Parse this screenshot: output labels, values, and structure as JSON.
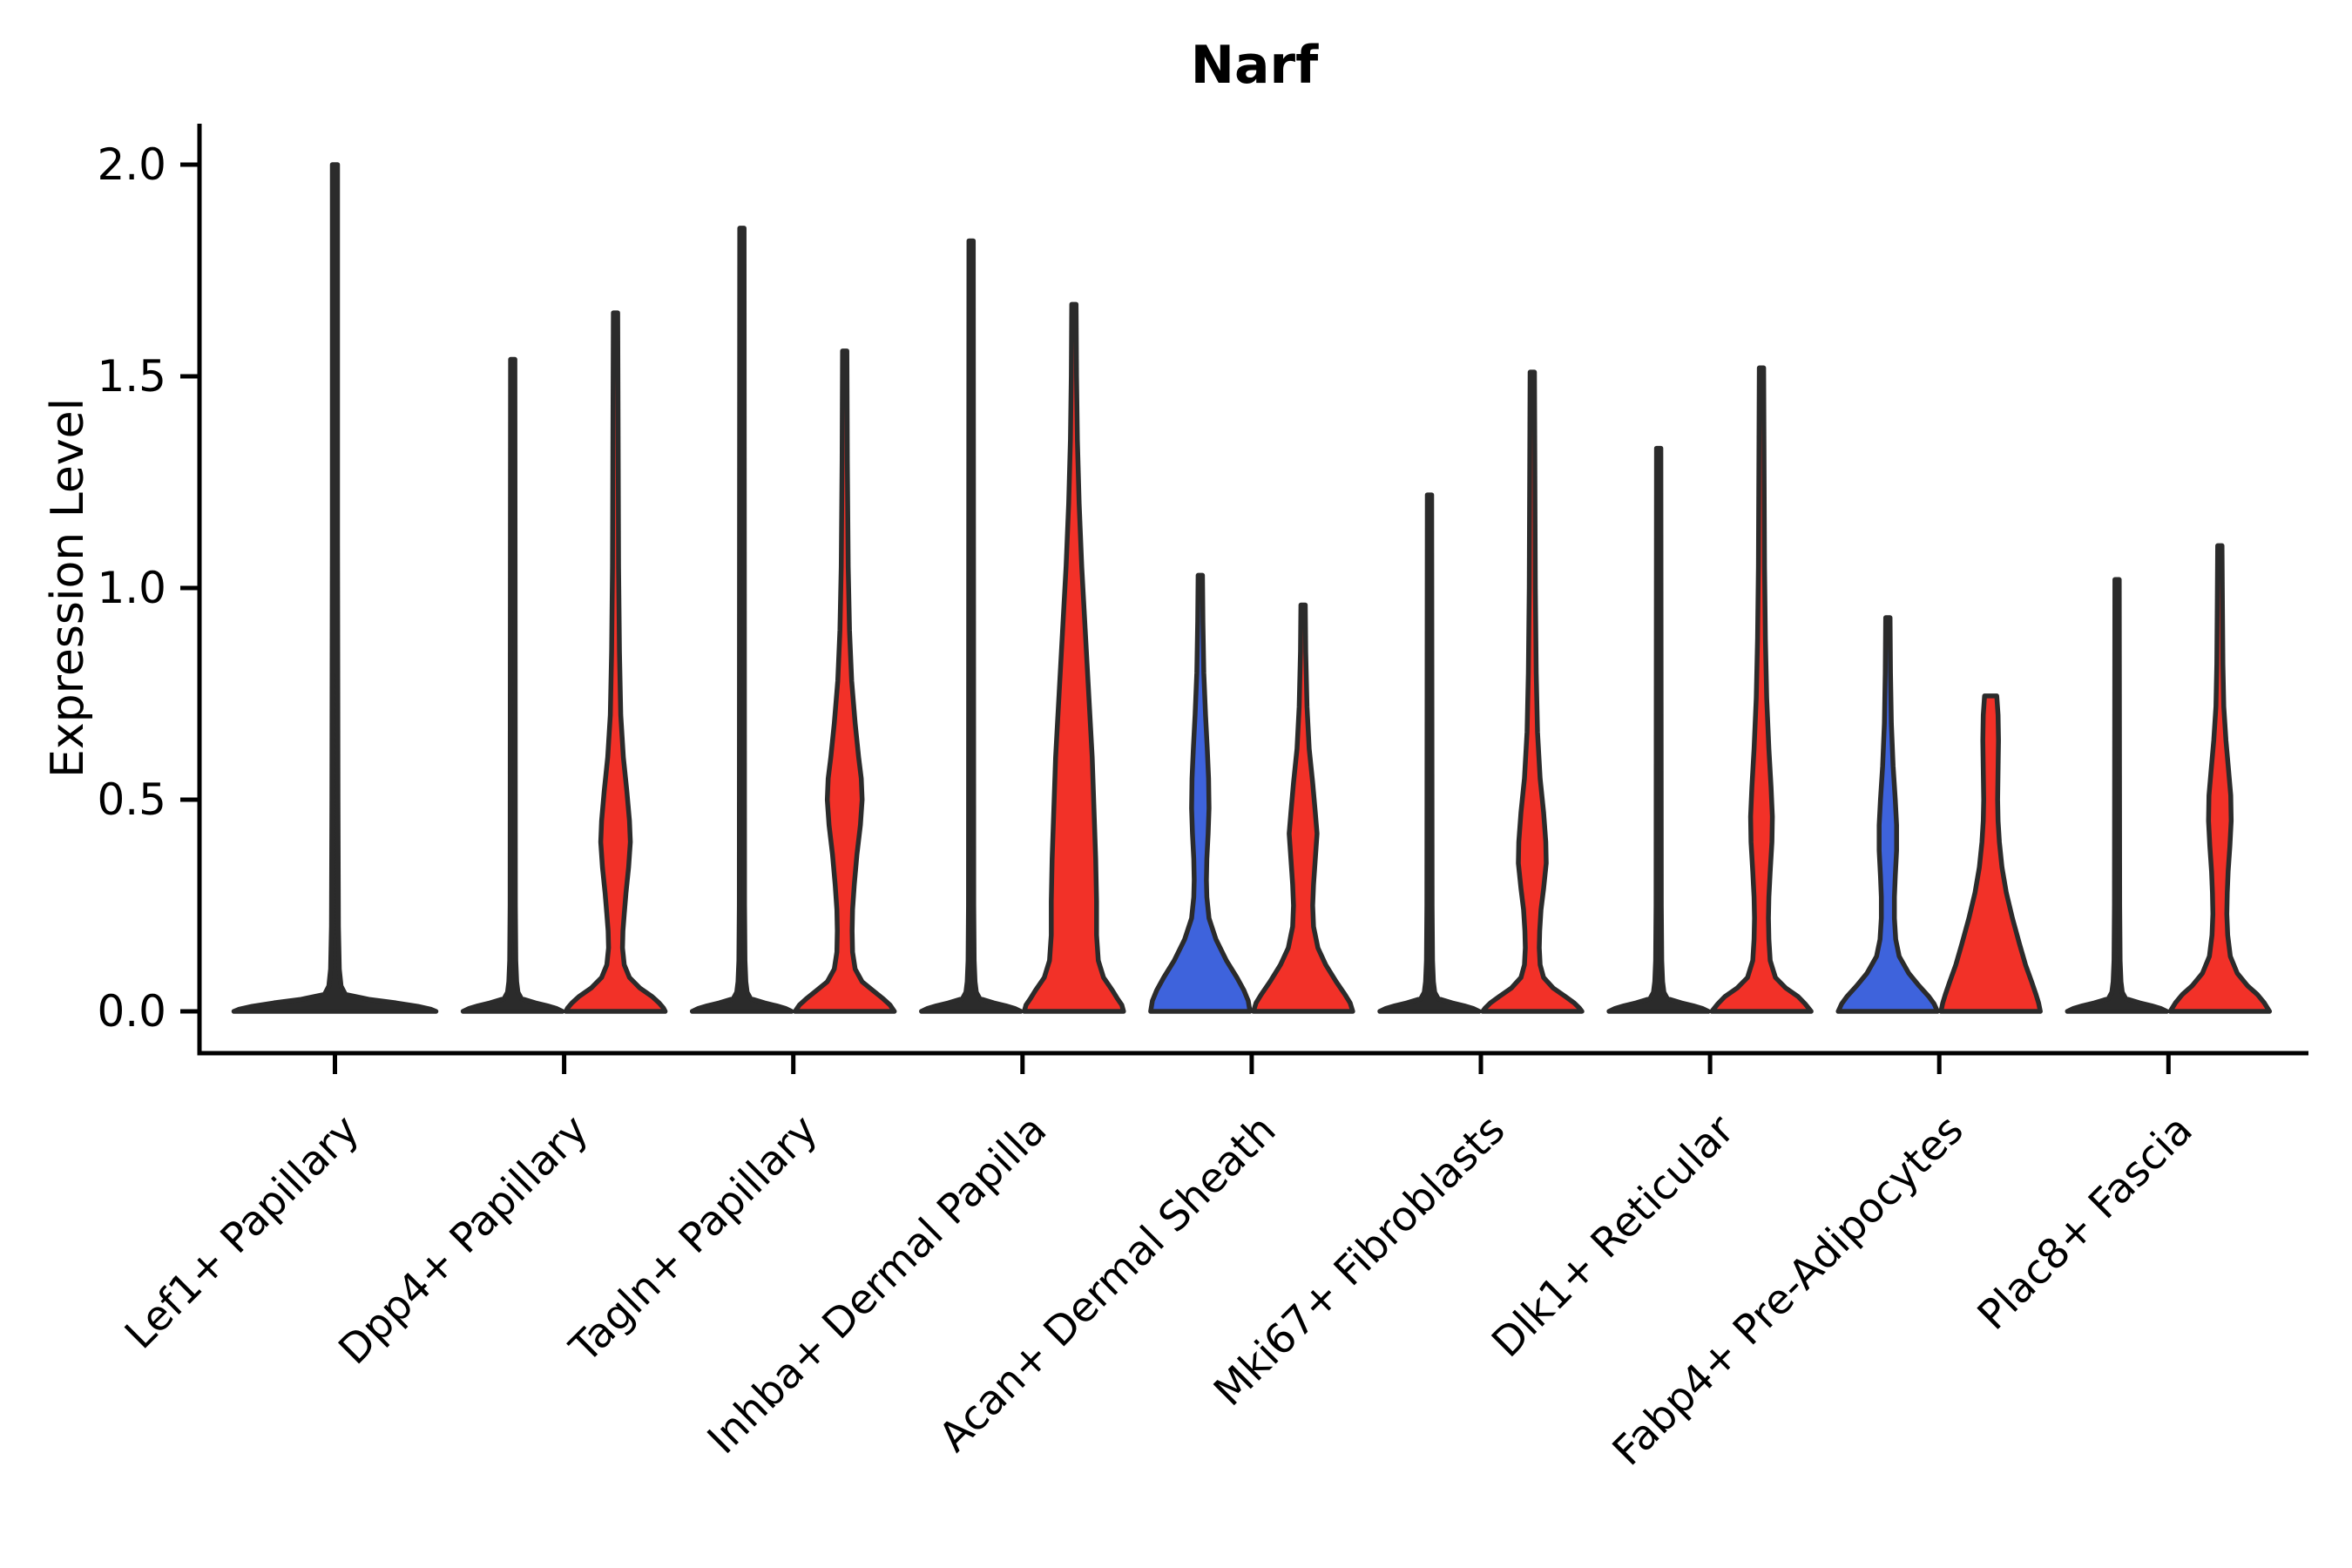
{
  "title": "Narf",
  "y_axis": {
    "label": "Expression Level",
    "tick_labels": [
      "0.0",
      "0.5",
      "1.0",
      "1.5",
      "2.0"
    ],
    "tick_values": [
      0.0,
      0.5,
      1.0,
      1.5,
      2.0
    ]
  },
  "x_axis": {
    "categories": [
      "Lef1+ Papillary",
      "Dpp4+ Papillary",
      "Tagln+ Papillary",
      "Inhba+ Dermal Papilla",
      "Acan+ Dermal Sheath",
      "Mki67+ Fibroblasts",
      "Dlk1+ Reticular",
      "Fabp4+ Pre-Adipocytes",
      "Plac8+ Fascia"
    ]
  },
  "colors": {
    "red": "#F23128",
    "blue": "#3E63DC",
    "edge": "#2B2B2B",
    "axis": "#000000"
  },
  "chart_data": {
    "type": "violin",
    "title": "Narf",
    "ylabel": "Expression Level",
    "ylim": [
      0,
      2.1
    ],
    "yticks": [
      0.0,
      0.5,
      1.0,
      1.5,
      2.0
    ],
    "grid": false,
    "legend": "none",
    "categories": [
      "Lef1+ Papillary",
      "Dpp4+ Papillary",
      "Tagln+ Papillary",
      "Inhba+ Dermal Papilla",
      "Acan+ Dermal Sheath",
      "Mki67+ Fibroblasts",
      "Dlk1+ Reticular",
      "Fabp4+ Pre-Adipocytes",
      "Plac8+ Fascia"
    ],
    "violins": [
      {
        "category_index": 0,
        "category": "Lef1+ Papillary",
        "side": "single",
        "fill": "none",
        "max_expression": 2.0,
        "profile": [
          [
            2.0,
            3
          ],
          [
            1.1,
            3
          ],
          [
            0.5,
            3.5
          ],
          [
            0.2,
            4
          ],
          [
            0.1,
            5
          ],
          [
            0.06,
            7
          ],
          [
            0.04,
            12
          ],
          [
            0.028,
            40
          ],
          [
            0.02,
            70
          ],
          [
            0.012,
            95
          ],
          [
            0.005,
            110
          ],
          [
            0,
            116
          ]
        ]
      },
      {
        "category_index": 1,
        "category": "Dpp4+ Papillary",
        "side": "left",
        "fill": "none",
        "max_expression": 1.54,
        "profile": [
          [
            1.54,
            2.5
          ],
          [
            0.85,
            2.8
          ],
          [
            0.25,
            3
          ],
          [
            0.12,
            3.5
          ],
          [
            0.07,
            4.5
          ],
          [
            0.045,
            6
          ],
          [
            0.03,
            10
          ],
          [
            0.02,
            26
          ],
          [
            0.013,
            40
          ],
          [
            0.007,
            50
          ],
          [
            0,
            57
          ]
        ]
      },
      {
        "category_index": 1,
        "category": "Dpp4+ Papillary",
        "side": "right",
        "fill": "red",
        "max_expression": 1.65,
        "profile": [
          [
            1.65,
            2.5
          ],
          [
            1.35,
            3
          ],
          [
            1.05,
            3.5
          ],
          [
            0.85,
            4.5
          ],
          [
            0.7,
            6
          ],
          [
            0.6,
            9
          ],
          [
            0.52,
            13
          ],
          [
            0.45,
            16
          ],
          [
            0.4,
            17
          ],
          [
            0.34,
            15
          ],
          [
            0.28,
            12
          ],
          [
            0.23,
            10
          ],
          [
            0.19,
            8.5
          ],
          [
            0.15,
            8
          ],
          [
            0.11,
            10
          ],
          [
            0.08,
            16
          ],
          [
            0.055,
            28
          ],
          [
            0.035,
            42
          ],
          [
            0.02,
            50
          ],
          [
            0.008,
            55
          ],
          [
            0,
            57
          ]
        ]
      },
      {
        "category_index": 2,
        "category": "Tagln+ Papillary",
        "side": "left",
        "fill": "none",
        "max_expression": 1.85,
        "profile": [
          [
            1.85,
            2.5
          ],
          [
            1.0,
            2.8
          ],
          [
            0.25,
            3
          ],
          [
            0.12,
            3.5
          ],
          [
            0.07,
            4.5
          ],
          [
            0.045,
            6
          ],
          [
            0.03,
            10
          ],
          [
            0.02,
            26
          ],
          [
            0.013,
            40
          ],
          [
            0.007,
            50
          ],
          [
            0,
            57
          ]
        ]
      },
      {
        "category_index": 2,
        "category": "Tagln+ Papillary",
        "side": "right",
        "fill": "red",
        "max_expression": 1.56,
        "profile": [
          [
            1.56,
            2.5
          ],
          [
            1.3,
            3
          ],
          [
            1.05,
            4
          ],
          [
            0.9,
            5.5
          ],
          [
            0.78,
            8
          ],
          [
            0.68,
            12
          ],
          [
            0.6,
            16
          ],
          [
            0.55,
            19
          ],
          [
            0.5,
            20
          ],
          [
            0.44,
            18
          ],
          [
            0.37,
            14
          ],
          [
            0.3,
            11
          ],
          [
            0.24,
            9
          ],
          [
            0.19,
            8.5
          ],
          [
            0.14,
            9
          ],
          [
            0.1,
            12
          ],
          [
            0.07,
            20
          ],
          [
            0.05,
            32
          ],
          [
            0.03,
            44
          ],
          [
            0.015,
            52
          ],
          [
            0,
            57
          ]
        ]
      },
      {
        "category_index": 3,
        "category": "Inhba+ Dermal Papilla",
        "side": "left",
        "fill": "none",
        "max_expression": 1.82,
        "profile": [
          [
            1.82,
            2.5
          ],
          [
            1.0,
            2.8
          ],
          [
            0.25,
            3
          ],
          [
            0.12,
            3.5
          ],
          [
            0.07,
            4.5
          ],
          [
            0.045,
            6
          ],
          [
            0.03,
            10
          ],
          [
            0.02,
            26
          ],
          [
            0.013,
            40
          ],
          [
            0.007,
            50
          ],
          [
            0,
            57
          ]
        ]
      },
      {
        "category_index": 3,
        "category": "Inhba+ Dermal Papilla",
        "side": "right",
        "fill": "red",
        "max_expression": 1.67,
        "profile": [
          [
            1.67,
            2.5
          ],
          [
            1.5,
            3
          ],
          [
            1.35,
            4
          ],
          [
            1.2,
            6
          ],
          [
            1.05,
            9
          ],
          [
            0.9,
            13
          ],
          [
            0.75,
            17
          ],
          [
            0.6,
            21
          ],
          [
            0.48,
            23
          ],
          [
            0.36,
            25
          ],
          [
            0.26,
            26
          ],
          [
            0.18,
            26
          ],
          [
            0.12,
            28
          ],
          [
            0.08,
            34
          ],
          [
            0.05,
            44
          ],
          [
            0.03,
            50
          ],
          [
            0.015,
            55
          ],
          [
            0,
            57
          ]
        ]
      },
      {
        "category_index": 4,
        "category": "Acan+ Dermal Sheath",
        "side": "left",
        "fill": "blue",
        "max_expression": 1.03,
        "profile": [
          [
            1.03,
            2.5
          ],
          [
            0.92,
            3
          ],
          [
            0.8,
            4
          ],
          [
            0.7,
            6
          ],
          [
            0.62,
            8
          ],
          [
            0.55,
            9.5
          ],
          [
            0.48,
            10
          ],
          [
            0.42,
            9
          ],
          [
            0.36,
            7.5
          ],
          [
            0.31,
            7
          ],
          [
            0.27,
            7.5
          ],
          [
            0.22,
            10
          ],
          [
            0.17,
            18
          ],
          [
            0.12,
            30
          ],
          [
            0.08,
            42
          ],
          [
            0.05,
            50
          ],
          [
            0.025,
            55
          ],
          [
            0,
            57
          ]
        ]
      },
      {
        "category_index": 4,
        "category": "Acan+ Dermal Sheath",
        "side": "right",
        "fill": "red",
        "max_expression": 0.96,
        "profile": [
          [
            0.96,
            2.5
          ],
          [
            0.85,
            3
          ],
          [
            0.72,
            4.5
          ],
          [
            0.62,
            7
          ],
          [
            0.54,
            11
          ],
          [
            0.47,
            14
          ],
          [
            0.42,
            16
          ],
          [
            0.36,
            14
          ],
          [
            0.3,
            12
          ],
          [
            0.25,
            11
          ],
          [
            0.2,
            12
          ],
          [
            0.15,
            17
          ],
          [
            0.11,
            26
          ],
          [
            0.07,
            38
          ],
          [
            0.04,
            48
          ],
          [
            0.02,
            54
          ],
          [
            0,
            57
          ]
        ]
      },
      {
        "category_index": 5,
        "category": "Mki67+ Fibroblasts",
        "side": "left",
        "fill": "none",
        "max_expression": 1.22,
        "profile": [
          [
            1.22,
            2.5
          ],
          [
            0.68,
            2.8
          ],
          [
            0.25,
            3
          ],
          [
            0.12,
            3.5
          ],
          [
            0.07,
            4.5
          ],
          [
            0.045,
            6
          ],
          [
            0.03,
            10
          ],
          [
            0.02,
            26
          ],
          [
            0.013,
            40
          ],
          [
            0.007,
            50
          ],
          [
            0,
            57
          ]
        ]
      },
      {
        "category_index": 5,
        "category": "Mki67+ Fibroblasts",
        "side": "right",
        "fill": "red",
        "max_expression": 1.51,
        "profile": [
          [
            1.51,
            2.5
          ],
          [
            1.25,
            3
          ],
          [
            1.0,
            3.5
          ],
          [
            0.8,
            4.5
          ],
          [
            0.66,
            6
          ],
          [
            0.55,
            9
          ],
          [
            0.47,
            13
          ],
          [
            0.4,
            15.5
          ],
          [
            0.35,
            16
          ],
          [
            0.29,
            13
          ],
          [
            0.24,
            10
          ],
          [
            0.19,
            8.5
          ],
          [
            0.15,
            8
          ],
          [
            0.11,
            9
          ],
          [
            0.08,
            13
          ],
          [
            0.055,
            24
          ],
          [
            0.035,
            38
          ],
          [
            0.02,
            48
          ],
          [
            0.008,
            54
          ],
          [
            0,
            57
          ]
        ]
      },
      {
        "category_index": 6,
        "category": "Dlk1+ Reticular",
        "side": "left",
        "fill": "none",
        "max_expression": 1.33,
        "profile": [
          [
            1.33,
            2.5
          ],
          [
            0.73,
            2.8
          ],
          [
            0.25,
            3
          ],
          [
            0.12,
            3.5
          ],
          [
            0.07,
            4.5
          ],
          [
            0.045,
            6
          ],
          [
            0.03,
            10
          ],
          [
            0.02,
            26
          ],
          [
            0.013,
            40
          ],
          [
            0.007,
            50
          ],
          [
            0,
            57
          ]
        ]
      },
      {
        "category_index": 6,
        "category": "Dlk1+ Reticular",
        "side": "right",
        "fill": "red",
        "max_expression": 1.52,
        "profile": [
          [
            1.52,
            2.5
          ],
          [
            1.28,
            3
          ],
          [
            1.05,
            3.5
          ],
          [
            0.88,
            4.5
          ],
          [
            0.74,
            6
          ],
          [
            0.62,
            8.5
          ],
          [
            0.53,
            11
          ],
          [
            0.46,
            12.5
          ],
          [
            0.4,
            12
          ],
          [
            0.33,
            10
          ],
          [
            0.27,
            8.5
          ],
          [
            0.22,
            8
          ],
          [
            0.17,
            8.5
          ],
          [
            0.12,
            10
          ],
          [
            0.08,
            16
          ],
          [
            0.055,
            28
          ],
          [
            0.035,
            42
          ],
          [
            0.018,
            50
          ],
          [
            0,
            57
          ]
        ]
      },
      {
        "category_index": 7,
        "category": "Fabp4+ Pre-Adipocytes",
        "side": "left",
        "fill": "blue",
        "max_expression": 0.93,
        "profile": [
          [
            0.93,
            2.5
          ],
          [
            0.8,
            3
          ],
          [
            0.68,
            4
          ],
          [
            0.58,
            6
          ],
          [
            0.5,
            8.5
          ],
          [
            0.44,
            10
          ],
          [
            0.38,
            10
          ],
          [
            0.32,
            8.5
          ],
          [
            0.27,
            7.5
          ],
          [
            0.22,
            7.5
          ],
          [
            0.17,
            9
          ],
          [
            0.13,
            13
          ],
          [
            0.09,
            24
          ],
          [
            0.06,
            36
          ],
          [
            0.035,
            47
          ],
          [
            0.018,
            53
          ],
          [
            0,
            57
          ]
        ]
      },
      {
        "category_index": 7,
        "category": "Fabp4+ Pre-Adipocytes",
        "side": "right",
        "fill": "red",
        "max_expression": 0.75,
        "profile": [
          [
            0.745,
            7
          ],
          [
            0.7,
            8.5
          ],
          [
            0.64,
            9
          ],
          [
            0.57,
            8.5
          ],
          [
            0.5,
            8
          ],
          [
            0.45,
            8.5
          ],
          [
            0.4,
            10
          ],
          [
            0.34,
            13
          ],
          [
            0.28,
            18
          ],
          [
            0.22,
            25
          ],
          [
            0.16,
            33
          ],
          [
            0.11,
            40
          ],
          [
            0.07,
            47
          ],
          [
            0.04,
            52
          ],
          [
            0.02,
            55
          ],
          [
            0,
            57
          ]
        ]
      },
      {
        "category_index": 8,
        "category": "Plac8+ Fascia",
        "side": "left",
        "fill": "none",
        "max_expression": 1.02,
        "profile": [
          [
            1.02,
            2.5
          ],
          [
            0.56,
            2.8
          ],
          [
            0.25,
            3
          ],
          [
            0.12,
            3.5
          ],
          [
            0.07,
            4.5
          ],
          [
            0.045,
            6
          ],
          [
            0.03,
            10
          ],
          [
            0.02,
            26
          ],
          [
            0.013,
            40
          ],
          [
            0.007,
            50
          ],
          [
            0,
            57
          ]
        ]
      },
      {
        "category_index": 8,
        "category": "Plac8+ Fascia",
        "side": "right",
        "fill": "red",
        "max_expression": 1.1,
        "profile": [
          [
            1.1,
            2.5
          ],
          [
            0.95,
            3
          ],
          [
            0.82,
            3.5
          ],
          [
            0.72,
            4.5
          ],
          [
            0.64,
            7
          ],
          [
            0.57,
            10
          ],
          [
            0.51,
            12.5
          ],
          [
            0.45,
            13
          ],
          [
            0.39,
            11.5
          ],
          [
            0.33,
            9.5
          ],
          [
            0.28,
            8.5
          ],
          [
            0.23,
            8
          ],
          [
            0.18,
            9
          ],
          [
            0.13,
            12
          ],
          [
            0.09,
            20
          ],
          [
            0.06,
            32
          ],
          [
            0.04,
            43
          ],
          [
            0.02,
            51
          ],
          [
            0,
            57
          ]
        ]
      }
    ]
  }
}
